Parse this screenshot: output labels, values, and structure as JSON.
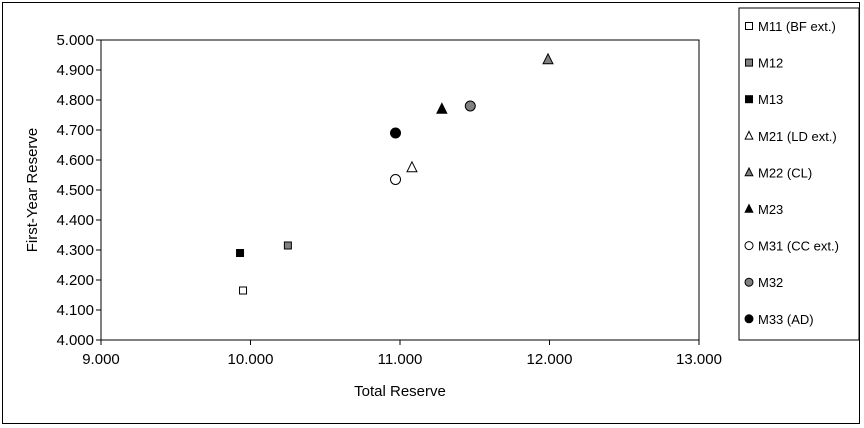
{
  "chart_data": {
    "type": "scatter",
    "title": "",
    "xlabel": "Total Reserve",
    "ylabel": "First-Year Reserve",
    "xlim": [
      9.0,
      13.0
    ],
    "ylim": [
      4.0,
      5.0
    ],
    "x_ticks": [
      "9.000",
      "10.000",
      "11.000",
      "12.000",
      "13.000"
    ],
    "y_ticks": [
      "4.000",
      "4.100",
      "4.200",
      "4.300",
      "4.400",
      "4.500",
      "4.600",
      "4.700",
      "4.800",
      "4.900",
      "5.000"
    ],
    "grid": false,
    "legend_position": "right",
    "series": [
      {
        "name": "M11 (BF ext.)",
        "marker": "square",
        "fill": "#ffffff",
        "x": 9.95,
        "y": 4.165
      },
      {
        "name": "M12",
        "marker": "square",
        "fill": "#808080",
        "x": 10.25,
        "y": 4.315
      },
      {
        "name": "M13",
        "marker": "square",
        "fill": "#000000",
        "x": 9.93,
        "y": 4.29
      },
      {
        "name": "M21 (LD ext.)",
        "marker": "triangle",
        "fill": "#ffffff",
        "x": 11.08,
        "y": 4.575
      },
      {
        "name": "M22 (CL)",
        "marker": "triangle",
        "fill": "#808080",
        "x": 11.99,
        "y": 4.935
      },
      {
        "name": "M23",
        "marker": "triangle",
        "fill": "#000000",
        "x": 11.28,
        "y": 4.77
      },
      {
        "name": "M31 (CC ext.)",
        "marker": "circle",
        "fill": "#ffffff",
        "x": 10.97,
        "y": 4.535
      },
      {
        "name": "M32",
        "marker": "circle",
        "fill": "#808080",
        "x": 11.47,
        "y": 4.78
      },
      {
        "name": "M33 (AD)",
        "marker": "circle",
        "fill": "#000000",
        "x": 10.97,
        "y": 4.69
      }
    ]
  }
}
